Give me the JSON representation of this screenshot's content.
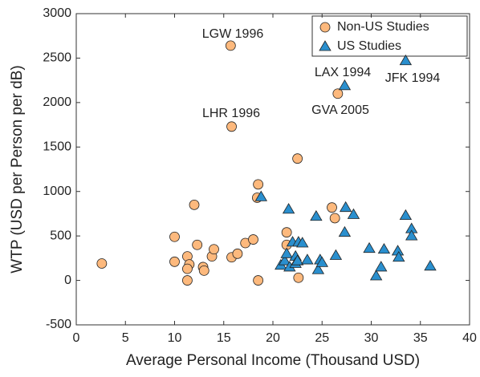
{
  "chart_data": {
    "type": "scatter",
    "x_label": "Average Personal Income (Thousand USD)",
    "y_label": "WTP (USD per Person per dB)",
    "xlim": [
      0,
      40
    ],
    "xticks": [
      0,
      5,
      10,
      15,
      20,
      25,
      30,
      35,
      40
    ],
    "ylim": [
      -500,
      3000
    ],
    "yticks": [
      -500,
      0,
      500,
      1000,
      1500,
      2000,
      2500,
      3000
    ],
    "legend": "upper right",
    "series": [
      {
        "name": "Non-US Studies",
        "color": "#fdb97d",
        "marker": "circle",
        "x": [
          2.6,
          10,
          10,
          11.3,
          11.5,
          11.3,
          11.3,
          12,
          12.3,
          12.9,
          13,
          13.8,
          14,
          15.7,
          15.8,
          15.8,
          16.4,
          17.2,
          18,
          18.5,
          18.4,
          18.5,
          21.4,
          21.4,
          22.5,
          22.6,
          26,
          26.3,
          26.6
        ],
        "values": [
          190,
          490,
          210,
          270,
          180,
          130,
          0,
          850,
          400,
          150,
          110,
          270,
          350,
          2640,
          1730,
          260,
          300,
          420,
          460,
          1080,
          930,
          0,
          540,
          400,
          1370,
          30,
          820,
          700,
          2100
        ]
      },
      {
        "name": "US Studies",
        "color": "#2a8fce",
        "marker": "triangle",
        "x": [
          18.8,
          20.8,
          21.2,
          21.4,
          21.6,
          21.7,
          22,
          22.3,
          22.3,
          22.5,
          22.6,
          23,
          23.5,
          24.4,
          24.6,
          24.8,
          25,
          26.4,
          27.3,
          27.4,
          27.3,
          28.2,
          29.8,
          30.5,
          31,
          31.3,
          32.7,
          32.8,
          33.5,
          33.5,
          34.1,
          34.1,
          36
        ],
        "values": [
          940,
          170,
          220,
          300,
          800,
          150,
          430,
          270,
          190,
          220,
          430,
          420,
          230,
          720,
          120,
          230,
          200,
          280,
          2190,
          820,
          540,
          740,
          360,
          50,
          150,
          350,
          330,
          260,
          2470,
          730,
          580,
          500,
          160
        ]
      }
    ],
    "annotations": [
      "LGW 1996",
      "LHR 1996",
      "LAX 1994",
      "GVA 2005",
      "JFK 1994"
    ]
  }
}
